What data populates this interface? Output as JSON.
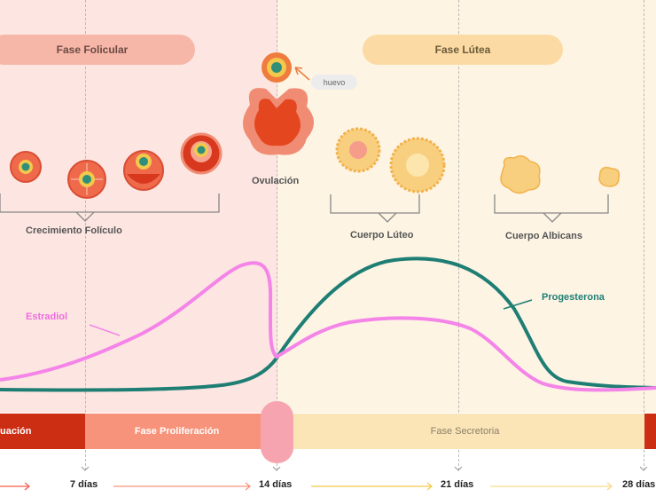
{
  "phases": {
    "follicular": "Fase Folicular",
    "luteal": "Fase Lútea"
  },
  "labels": {
    "egg": "huevo",
    "ovulation": "Ovulación",
    "follicle_growth": "Crecimiento Folículo",
    "corpus_luteum": "Cuerpo Lúteo",
    "corpus_albicans": "Cuerpo Albicans"
  },
  "hormones": {
    "estradiol": "Estradiol",
    "progesterone": "Progesterona"
  },
  "uterine_phases": {
    "menstruation": "uación",
    "proliferative": "Fase Proliferación",
    "secretory": "Fase Secretoria"
  },
  "days": [
    "7 días",
    "14 días",
    "21 días",
    "28 días"
  ],
  "colors": {
    "estradiol": "#f484e8",
    "progesterone": "#1f7e74",
    "follicular_bg": "#fde6e1",
    "luteal_bg": "#fdf4e4"
  }
}
